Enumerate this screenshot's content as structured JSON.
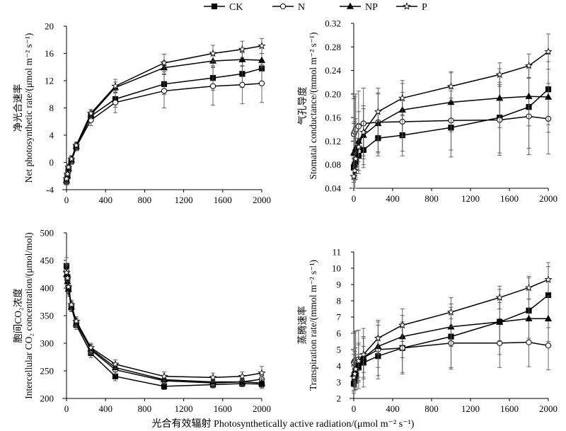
{
  "legend": [
    {
      "name": "CK",
      "marker": "square"
    },
    {
      "name": "N",
      "marker": "circle"
    },
    {
      "name": "NP",
      "marker": "triangle"
    },
    {
      "name": "P",
      "marker": "star"
    }
  ],
  "x_common_label": "光合有效辐射 Photosynthetically active radiation/(μmol m⁻² s⁻¹)",
  "chart_data": [
    {
      "type": "line",
      "ylabel_cn": "净光合速率",
      "ylabel_en": "Net photosynthetic rate/(μmol m⁻² s⁻¹)",
      "xlim": [
        0,
        2000
      ],
      "ylim": [
        -4,
        20
      ],
      "xticks": [
        0,
        400,
        800,
        1200,
        1600,
        2000
      ],
      "yticks": [
        -4,
        0,
        4,
        8,
        12,
        16,
        20
      ],
      "x": [
        0,
        10,
        20,
        50,
        100,
        250,
        500,
        1000,
        1500,
        1800,
        2000
      ],
      "series": [
        {
          "name": "CK",
          "values": [
            -2.8,
            -2.0,
            -1.0,
            0.2,
            2.2,
            6.8,
            9.3,
            11.5,
            12.4,
            13.0,
            13.8
          ],
          "err": [
            0.5,
            0.5,
            0.5,
            0.5,
            0.5,
            0.6,
            1.2,
            1.5,
            1.8,
            2.0,
            2.2
          ]
        },
        {
          "name": "N",
          "values": [
            -2.5,
            -1.8,
            -0.8,
            0.3,
            2.3,
            6.2,
            8.8,
            10.5,
            11.2,
            11.4,
            11.6
          ],
          "err": [
            0.5,
            0.5,
            0.5,
            0.5,
            0.5,
            0.8,
            1.5,
            2.5,
            2.8,
            2.8,
            2.8
          ]
        },
        {
          "name": "NP",
          "values": [
            -2.6,
            -1.9,
            -0.9,
            0.4,
            2.4,
            7.0,
            11.0,
            13.9,
            14.9,
            15.1,
            15.0
          ],
          "err": [
            0.5,
            0.5,
            0.5,
            0.5,
            0.5,
            0.6,
            0.8,
            1.0,
            1.0,
            1.0,
            1.0
          ]
        },
        {
          "name": "P",
          "values": [
            -2.4,
            -1.7,
            -0.7,
            0.5,
            2.5,
            7.2,
            11.2,
            14.6,
            16.0,
            16.6,
            17.1
          ],
          "err": [
            0.5,
            0.5,
            0.5,
            0.5,
            0.5,
            0.6,
            1.0,
            1.3,
            1.2,
            1.2,
            1.1
          ]
        }
      ]
    },
    {
      "type": "line",
      "ylabel_cn": "气孔导度",
      "ylabel_en": "Stomatal conductance/(mmol m⁻² s⁻¹)",
      "xlim": [
        0,
        2000
      ],
      "ylim": [
        0.04,
        0.32
      ],
      "xticks": [
        0,
        400,
        800,
        1200,
        1600,
        2000
      ],
      "yticks": [
        0.04,
        0.08,
        0.12,
        0.16,
        0.2,
        0.24,
        0.28,
        0.32
      ],
      "x": [
        0,
        10,
        20,
        50,
        100,
        250,
        500,
        1000,
        1500,
        1800,
        2000
      ],
      "series": [
        {
          "name": "CK",
          "values": [
            0.075,
            0.08,
            0.085,
            0.095,
            0.105,
            0.125,
            0.13,
            0.143,
            0.16,
            0.178,
            0.208
          ],
          "err": [
            0.02,
            0.02,
            0.02,
            0.03,
            0.03,
            0.03,
            0.035,
            0.05,
            0.06,
            0.07,
            0.06
          ]
        },
        {
          "name": "N",
          "values": [
            0.132,
            0.136,
            0.14,
            0.145,
            0.15,
            0.152,
            0.153,
            0.155,
            0.156,
            0.162,
            0.158
          ],
          "err": [
            0.06,
            0.06,
            0.06,
            0.06,
            0.06,
            0.05,
            0.05,
            0.05,
            0.06,
            0.065,
            0.06
          ]
        },
        {
          "name": "NP",
          "values": [
            0.1,
            0.103,
            0.108,
            0.12,
            0.13,
            0.15,
            0.173,
            0.186,
            0.193,
            0.196,
            0.195
          ],
          "err": [
            0.05,
            0.05,
            0.05,
            0.05,
            0.05,
            0.05,
            0.045,
            0.05,
            0.05,
            0.05,
            0.06
          ]
        },
        {
          "name": "P",
          "values": [
            0.06,
            0.07,
            0.09,
            0.11,
            0.135,
            0.17,
            0.193,
            0.213,
            0.233,
            0.248,
            0.272
          ],
          "err": [
            0.03,
            0.03,
            0.035,
            0.04,
            0.04,
            0.04,
            0.03,
            0.025,
            0.02,
            0.02,
            0.03
          ]
        }
      ]
    },
    {
      "type": "line",
      "ylabel_cn": "胞间CO₂浓度",
      "ylabel_en": "Intercellular CO₂ concentration/(μmol/mol)",
      "xlim": [
        0,
        2000
      ],
      "ylim": [
        200,
        500
      ],
      "xticks": [
        0,
        400,
        800,
        1200,
        1600,
        2000
      ],
      "yticks": [
        200,
        250,
        300,
        350,
        400,
        450,
        500
      ],
      "x": [
        0,
        10,
        20,
        50,
        100,
        250,
        500,
        1000,
        1500,
        1800,
        2000
      ],
      "series": [
        {
          "name": "CK",
          "values": [
            440,
            420,
            400,
            365,
            333,
            282,
            240,
            222,
            225,
            227,
            226
          ],
          "err": [
            15,
            12,
            10,
            8,
            8,
            8,
            8,
            6,
            6,
            6,
            8
          ]
        },
        {
          "name": "N",
          "values": [
            430,
            415,
            395,
            368,
            338,
            288,
            252,
            232,
            228,
            230,
            235
          ],
          "err": [
            15,
            12,
            10,
            8,
            8,
            8,
            8,
            6,
            6,
            6,
            8
          ]
        },
        {
          "name": "NP",
          "values": [
            425,
            412,
            398,
            366,
            336,
            290,
            256,
            234,
            230,
            230,
            228
          ],
          "err": [
            15,
            12,
            10,
            8,
            8,
            8,
            8,
            6,
            6,
            6,
            8
          ]
        },
        {
          "name": "P",
          "values": [
            428,
            418,
            402,
            370,
            340,
            292,
            262,
            240,
            238,
            240,
            246
          ],
          "err": [
            15,
            12,
            10,
            8,
            8,
            8,
            8,
            8,
            8,
            8,
            12
          ]
        }
      ]
    },
    {
      "type": "line",
      "ylabel_cn": "蒸腾速率",
      "ylabel_en": "Transpiration rate/(mmol m⁻² s⁻¹)",
      "xlim": [
        0,
        2000
      ],
      "ylim": [
        2,
        11
      ],
      "xticks": [
        0,
        400,
        800,
        1200,
        1600,
        2000
      ],
      "yticks": [
        2,
        3,
        4,
        5,
        6,
        7,
        8,
        9,
        10,
        11
      ],
      "x": [
        0,
        10,
        20,
        50,
        100,
        250,
        500,
        1000,
        1500,
        1800,
        2000
      ],
      "series": [
        {
          "name": "CK",
          "values": [
            2.9,
            3.1,
            3.4,
            3.9,
            4.2,
            4.6,
            5.1,
            5.8,
            6.7,
            7.4,
            8.35
          ],
          "err": [
            0.4,
            0.4,
            0.5,
            0.8,
            1.0,
            1.2,
            1.5,
            2.0,
            2.0,
            2.0,
            2.0
          ]
        },
        {
          "name": "N",
          "values": [
            4.2,
            4.3,
            4.35,
            4.4,
            4.5,
            5.0,
            5.1,
            5.4,
            5.4,
            5.45,
            5.25
          ],
          "err": [
            1.8,
            1.8,
            1.8,
            1.8,
            1.8,
            1.8,
            1.6,
            1.5,
            1.5,
            1.5,
            1.5
          ]
        },
        {
          "name": "NP",
          "values": [
            3.5,
            3.7,
            3.9,
            4.2,
            4.5,
            5.2,
            5.8,
            6.4,
            6.7,
            6.9,
            6.9
          ],
          "err": [
            1.2,
            1.2,
            1.2,
            1.2,
            1.2,
            1.3,
            1.3,
            1.2,
            1.2,
            1.2,
            1.4
          ]
        },
        {
          "name": "P",
          "values": [
            3.3,
            3.5,
            3.8,
            4.3,
            4.7,
            5.7,
            6.5,
            7.3,
            8.2,
            8.8,
            9.3
          ],
          "err": [
            0.8,
            0.8,
            0.9,
            1.0,
            1.1,
            1.0,
            1.0,
            0.9,
            0.7,
            0.7,
            0.8
          ]
        }
      ]
    }
  ]
}
